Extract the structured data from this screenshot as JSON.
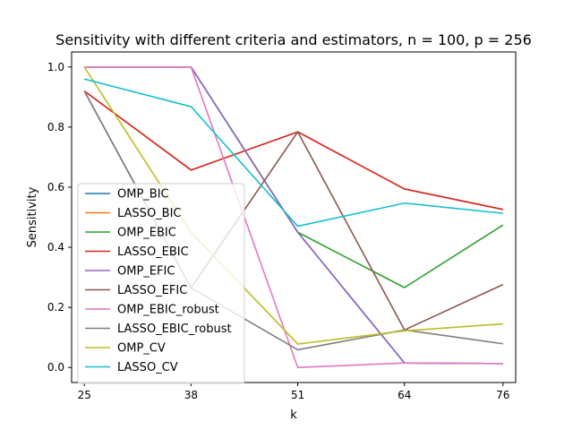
{
  "chart_data": {
    "type": "line",
    "title": "Sensitivity with different criteria and estimators, n = 100, p = 256",
    "xlabel": "k",
    "ylabel": "Sensitivity",
    "x": [
      25,
      38,
      51,
      64,
      76
    ],
    "xlim": [
      23.45,
      77.55
    ],
    "ylim": [
      -0.05,
      1.05
    ],
    "yticks": [
      0.0,
      0.2,
      0.4,
      0.6,
      0.8,
      1.0
    ],
    "ytick_labels": [
      "0.0",
      "0.2",
      "0.4",
      "0.6",
      "0.8",
      "1.0"
    ],
    "xtick_labels": [
      "25",
      "38",
      "51",
      "64",
      "76"
    ],
    "grid": false,
    "legend_position": "lower-left",
    "series": [
      {
        "name": "OMP_BIC",
        "color": "#1f77b4",
        "values": [
          1.0,
          1.0,
          0.45,
          0.015,
          0.013
        ]
      },
      {
        "name": "LASSO_BIC",
        "color": "#ff7f0e",
        "values": [
          0.92,
          0.657,
          0.784,
          0.594,
          0.526
        ]
      },
      {
        "name": "OMP_EBIC",
        "color": "#2ca02c",
        "values": [
          1.0,
          1.0,
          0.45,
          0.266,
          0.474
        ]
      },
      {
        "name": "LASSO_EBIC",
        "color": "#d62728",
        "values": [
          0.92,
          0.657,
          0.784,
          0.594,
          0.526
        ]
      },
      {
        "name": "OMP_EFIC",
        "color": "#9467bd",
        "values": [
          1.0,
          1.0,
          0.45,
          0.015,
          0.013
        ]
      },
      {
        "name": "LASSO_EFIC",
        "color": "#8c564b",
        "values": [
          0.92,
          0.265,
          0.784,
          0.125,
          0.276
        ]
      },
      {
        "name": "OMP_EBIC_robust",
        "color": "#e377c2",
        "values": [
          1.0,
          1.0,
          0.0,
          0.015,
          0.013
        ]
      },
      {
        "name": "LASSO_EBIC_robust",
        "color": "#7f7f7f",
        "values": [
          0.92,
          0.265,
          0.059,
          0.125,
          0.079
        ]
      },
      {
        "name": "OMP_CV",
        "color": "#bcbd22",
        "values": [
          1.0,
          0.45,
          0.078,
          0.122,
          0.145
        ]
      },
      {
        "name": "LASSO_CV",
        "color": "#17becf",
        "values": [
          0.96,
          0.868,
          0.47,
          0.547,
          0.513
        ]
      }
    ]
  }
}
